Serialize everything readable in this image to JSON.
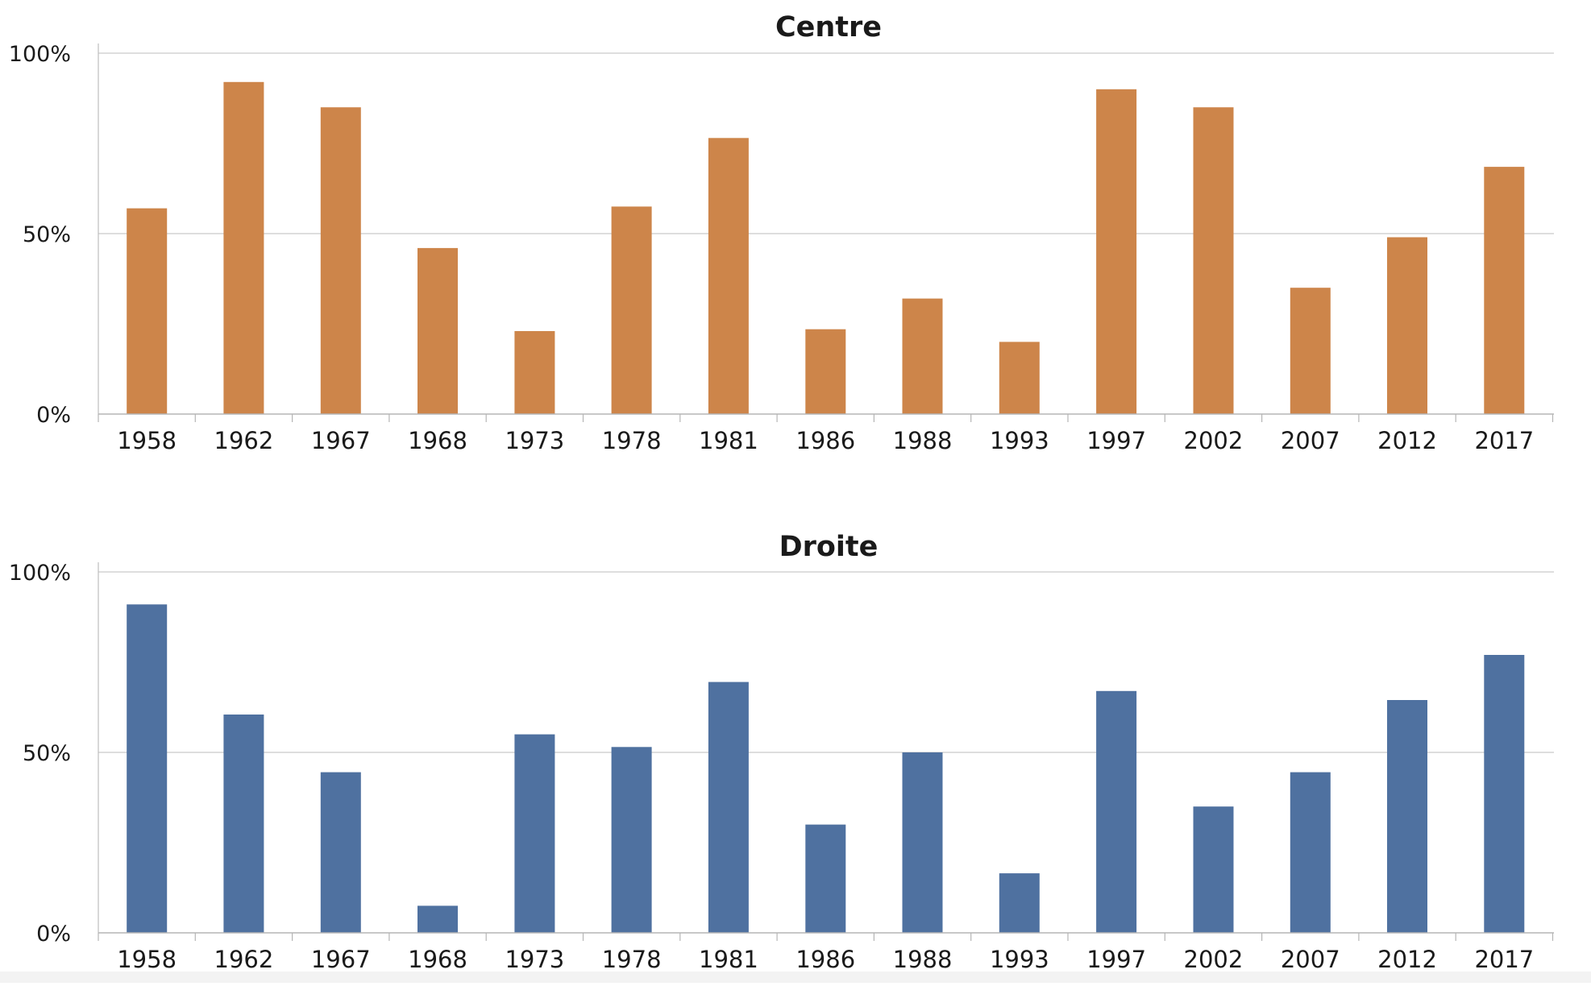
{
  "chart_data": [
    {
      "type": "bar",
      "title": "Centre",
      "color": "#cd854a",
      "categories": [
        "1958",
        "1962",
        "1967",
        "1968",
        "1973",
        "1978",
        "1981",
        "1986",
        "1988",
        "1993",
        "1997",
        "2002",
        "2007",
        "2012",
        "2017"
      ],
      "values": [
        57,
        92,
        85,
        46,
        23,
        57.5,
        76.5,
        23.5,
        32,
        20,
        90,
        85,
        35,
        49,
        68.5
      ],
      "ylim": [
        0,
        100
      ],
      "yticks": [
        "0%",
        "50%",
        "100%"
      ],
      "ytick_values": [
        0,
        50,
        100
      ],
      "xlabel": "",
      "ylabel": "",
      "grid": true
    },
    {
      "type": "bar",
      "title": "Droite",
      "color": "#4f71a0",
      "categories": [
        "1958",
        "1962",
        "1967",
        "1968",
        "1973",
        "1978",
        "1981",
        "1986",
        "1988",
        "1993",
        "1997",
        "2002",
        "2007",
        "2012",
        "2017"
      ],
      "values": [
        91,
        60.5,
        44.5,
        7.5,
        55,
        51.5,
        69.5,
        30,
        50,
        16.5,
        67,
        35,
        44.5,
        64.5,
        77
      ],
      "ylim": [
        0,
        100
      ],
      "yticks": [
        "0%",
        "50%",
        "100%"
      ],
      "ytick_values": [
        0,
        50,
        100
      ],
      "xlabel": "",
      "ylabel": "",
      "grid": true
    }
  ]
}
